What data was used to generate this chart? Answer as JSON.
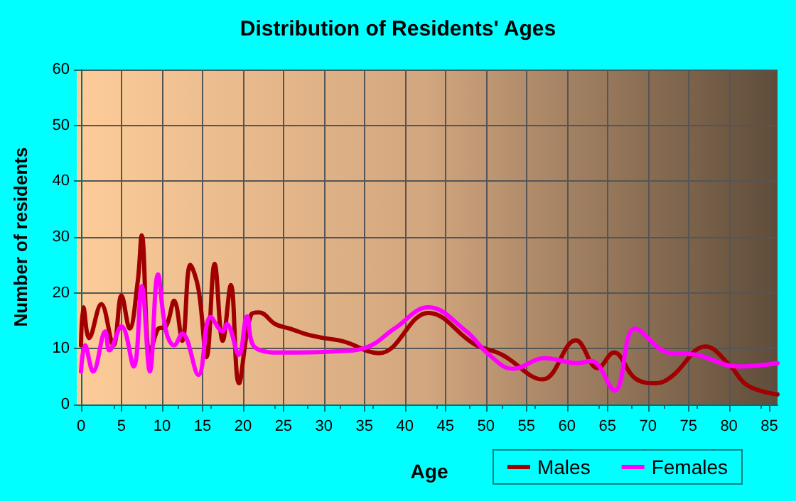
{
  "chart_data": {
    "type": "line",
    "title": "Distribution of Residents' Ages",
    "xlabel": "Age",
    "ylabel": "Number of residents",
    "xlim": [
      0,
      86
    ],
    "ylim": [
      0,
      60
    ],
    "xticks": [
      0,
      5,
      10,
      15,
      20,
      25,
      30,
      35,
      40,
      45,
      50,
      55,
      60,
      65,
      70,
      75,
      80,
      85
    ],
    "yticks": [
      0,
      10,
      20,
      30,
      40,
      50,
      60
    ],
    "grid": true,
    "legend": "bottom right",
    "marker": "none",
    "line_style": "solid",
    "series": [
      {
        "name": "Males",
        "color": "#a00000",
        "x": [
          0,
          0.3,
          1,
          2.5,
          4,
          5,
          6,
          7,
          7.5,
          8.5,
          9.5,
          10.5,
          11.5,
          12.5,
          13.5,
          14.5,
          15.5,
          16.5,
          17.5,
          18.5,
          19.5,
          21,
          22,
          24,
          26,
          28,
          30,
          32.4,
          36.8,
          42.9,
          48.6,
          52,
          57,
          61.1,
          63.8,
          65.8,
          68.4,
          71,
          73,
          77.1,
          80,
          82.3,
          86
        ],
        "values": [
          10.6,
          17.4,
          11.9,
          18,
          10.6,
          19.5,
          13.6,
          22,
          30.3,
          8.9,
          13.5,
          14,
          18.6,
          11.4,
          25,
          20.7,
          8.5,
          25.2,
          11.4,
          21.4,
          3.8,
          16.1,
          16.5,
          14.4,
          13.5,
          12.5,
          11.9,
          11.3,
          9.2,
          16.4,
          10.8,
          8.9,
          4.5,
          11.5,
          6.5,
          9.3,
          4.7,
          3.8,
          5.1,
          10.4,
          7.2,
          3.4,
          1.8
        ]
      },
      {
        "name": "Females",
        "color": "#ff00ff",
        "x": [
          0,
          0.5,
          1.5,
          3,
          3.5,
          5,
          6.5,
          7.5,
          8.5,
          9.5,
          10.5,
          11.5,
          12.5,
          14.5,
          16,
          17.5,
          18,
          19.5,
          20.5,
          21.5,
          25,
          31.2,
          35.2,
          38.7,
          42.9,
          47.5,
          50.4,
          53.3,
          57.3,
          61.3,
          63,
          65.9,
          68.4,
          72.5,
          76,
          81.2,
          86
        ],
        "values": [
          5.9,
          10.6,
          5.9,
          13.1,
          9.7,
          14,
          6.8,
          21.2,
          5.9,
          23.3,
          13.1,
          10.6,
          12.7,
          5.3,
          15.7,
          13.1,
          14.4,
          8.9,
          15.8,
          10.2,
          9.3,
          9.5,
          10.2,
          13.6,
          17.4,
          13.2,
          8.9,
          6.4,
          8.3,
          7.4,
          7.8,
          2.5,
          13.6,
          9.3,
          8.9,
          6.8,
          7.4
        ]
      }
    ]
  }
}
